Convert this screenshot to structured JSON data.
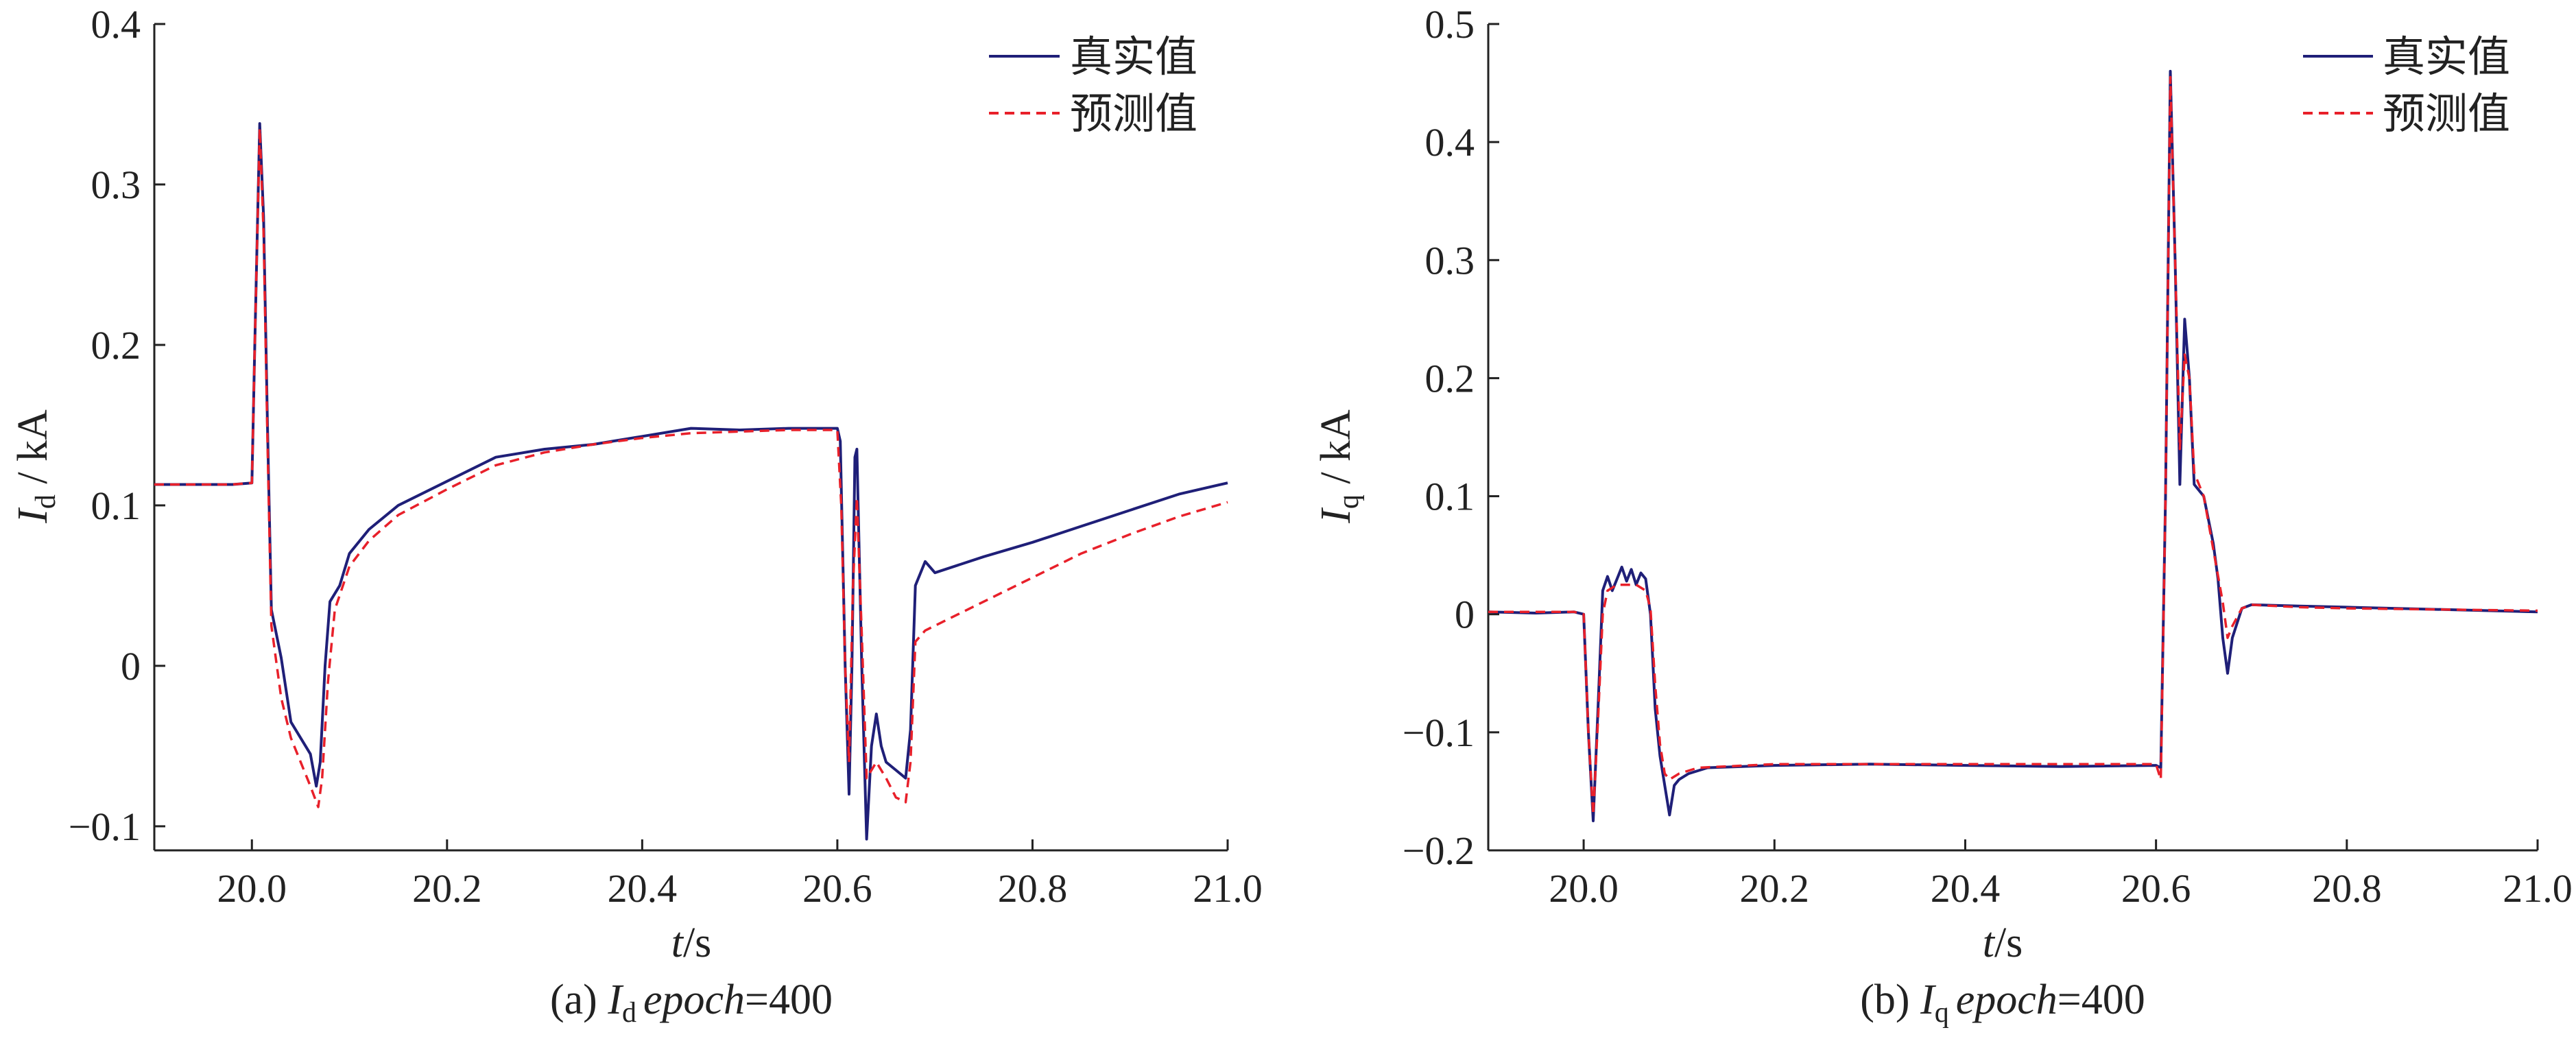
{
  "colors": {
    "true_series": "#1f1f78",
    "pred_series": "#e8202a",
    "axis": "#222222",
    "background": "#ffffff"
  },
  "chart_data": [
    {
      "type": "line",
      "caption": {
        "label": "(a) ",
        "var": "I",
        "sub": "d",
        "epoch_word": "epoch",
        "epoch_value": "=400"
      },
      "ylabel": {
        "var": "I",
        "sub": "d",
        "unit": " / kA"
      },
      "xlabel": {
        "var": "t",
        "unit": "/s"
      },
      "xlim": [
        19.9,
        21.0
      ],
      "ylim": [
        -0.115,
        0.4
      ],
      "xticks": [
        20.0,
        20.2,
        20.4,
        20.6,
        20.8,
        21.0
      ],
      "xtick_labels": [
        "20.0",
        "20.2",
        "20.4",
        "20.6",
        "20.8",
        "21.0"
      ],
      "yticks": [
        -0.1,
        0,
        0.1,
        0.2,
        0.3,
        0.4
      ],
      "ytick_labels": [
        "−0.1",
        "0",
        "0.1",
        "0.2",
        "0.3",
        "0.4"
      ],
      "grid": false,
      "legend": "top-right",
      "series": [
        {
          "name": "真实值",
          "style": "solid",
          "points": [
            [
              19.9,
              0.113
            ],
            [
              19.94,
              0.113
            ],
            [
              19.98,
              0.113
            ],
            [
              20.0,
              0.114
            ],
            [
              20.003,
              0.2
            ],
            [
              20.008,
              0.338
            ],
            [
              20.012,
              0.28
            ],
            [
              20.016,
              0.15
            ],
            [
              20.02,
              0.035
            ],
            [
              20.03,
              0.005
            ],
            [
              20.04,
              -0.035
            ],
            [
              20.05,
              -0.045
            ],
            [
              20.06,
              -0.055
            ],
            [
              20.066,
              -0.075
            ],
            [
              20.07,
              -0.06
            ],
            [
              20.075,
              0.0
            ],
            [
              20.08,
              0.04
            ],
            [
              20.09,
              0.05
            ],
            [
              20.1,
              0.07
            ],
            [
              20.12,
              0.085
            ],
            [
              20.15,
              0.1
            ],
            [
              20.2,
              0.115
            ],
            [
              20.25,
              0.13
            ],
            [
              20.3,
              0.135
            ],
            [
              20.35,
              0.138
            ],
            [
              20.4,
              0.143
            ],
            [
              20.45,
              0.148
            ],
            [
              20.5,
              0.147
            ],
            [
              20.55,
              0.148
            ],
            [
              20.6,
              0.148
            ],
            [
              20.603,
              0.14
            ],
            [
              20.608,
              0.0
            ],
            [
              20.612,
              -0.08
            ],
            [
              20.615,
              0.0
            ],
            [
              20.618,
              0.13
            ],
            [
              20.62,
              0.135
            ],
            [
              20.625,
              0.0
            ],
            [
              20.63,
              -0.108
            ],
            [
              20.635,
              -0.05
            ],
            [
              20.64,
              -0.03
            ],
            [
              20.645,
              -0.05
            ],
            [
              20.65,
              -0.06
            ],
            [
              20.66,
              -0.065
            ],
            [
              20.67,
              -0.07
            ],
            [
              20.675,
              -0.04
            ],
            [
              20.68,
              0.05
            ],
            [
              20.69,
              0.065
            ],
            [
              20.7,
              0.058
            ],
            [
              20.75,
              0.068
            ],
            [
              20.8,
              0.077
            ],
            [
              20.85,
              0.087
            ],
            [
              20.9,
              0.097
            ],
            [
              20.95,
              0.107
            ],
            [
              21.0,
              0.114
            ]
          ]
        },
        {
          "name": "预测值",
          "style": "dashed",
          "points": [
            [
              19.9,
              0.113
            ],
            [
              19.94,
              0.113
            ],
            [
              19.98,
              0.113
            ],
            [
              20.0,
              0.114
            ],
            [
              20.003,
              0.2
            ],
            [
              20.008,
              0.335
            ],
            [
              20.012,
              0.27
            ],
            [
              20.016,
              0.14
            ],
            [
              20.02,
              0.025
            ],
            [
              20.03,
              -0.02
            ],
            [
              20.04,
              -0.045
            ],
            [
              20.05,
              -0.06
            ],
            [
              20.06,
              -0.075
            ],
            [
              20.068,
              -0.088
            ],
            [
              20.072,
              -0.07
            ],
            [
              20.078,
              -0.01
            ],
            [
              20.085,
              0.035
            ],
            [
              20.1,
              0.062
            ],
            [
              20.12,
              0.078
            ],
            [
              20.15,
              0.094
            ],
            [
              20.2,
              0.11
            ],
            [
              20.25,
              0.125
            ],
            [
              20.3,
              0.133
            ],
            [
              20.35,
              0.138
            ],
            [
              20.4,
              0.142
            ],
            [
              20.45,
              0.145
            ],
            [
              20.5,
              0.146
            ],
            [
              20.55,
              0.147
            ],
            [
              20.6,
              0.147
            ],
            [
              20.604,
              0.1
            ],
            [
              20.608,
              0.0
            ],
            [
              20.612,
              -0.06
            ],
            [
              20.616,
              0.05
            ],
            [
              20.62,
              0.105
            ],
            [
              20.625,
              0.02
            ],
            [
              20.63,
              -0.07
            ],
            [
              20.64,
              -0.06
            ],
            [
              20.65,
              -0.07
            ],
            [
              20.66,
              -0.082
            ],
            [
              20.67,
              -0.085
            ],
            [
              20.675,
              -0.06
            ],
            [
              20.68,
              0.015
            ],
            [
              20.69,
              0.022
            ],
            [
              20.7,
              0.025
            ],
            [
              20.75,
              0.04
            ],
            [
              20.8,
              0.055
            ],
            [
              20.85,
              0.07
            ],
            [
              20.9,
              0.082
            ],
            [
              20.95,
              0.093
            ],
            [
              21.0,
              0.102
            ]
          ]
        }
      ]
    },
    {
      "type": "line",
      "caption": {
        "label": "(b) ",
        "var": "I",
        "sub": "q",
        "epoch_word": "epoch",
        "epoch_value": "=400"
      },
      "ylabel": {
        "var": "I",
        "sub": "q",
        "unit": " / kA"
      },
      "xlabel": {
        "var": "t",
        "unit": "/s"
      },
      "xlim": [
        19.9,
        21.0
      ],
      "ylim": [
        -0.2,
        0.5
      ],
      "xticks": [
        20.0,
        20.2,
        20.4,
        20.6,
        20.8,
        21.0
      ],
      "xtick_labels": [
        "20.0",
        "20.2",
        "20.4",
        "20.6",
        "20.8",
        "21.0"
      ],
      "yticks": [
        -0.2,
        -0.1,
        0,
        0.1,
        0.2,
        0.3,
        0.4,
        0.5
      ],
      "ytick_labels": [
        "−0.2",
        "−0.1",
        "0",
        "0.1",
        "0.2",
        "0.3",
        "0.4",
        "0.5"
      ],
      "grid": false,
      "legend": "top-right",
      "series": [
        {
          "name": "真实值",
          "style": "solid",
          "points": [
            [
              19.9,
              0.002
            ],
            [
              19.95,
              0.001
            ],
            [
              19.99,
              0.002
            ],
            [
              20.0,
              0.0
            ],
            [
              20.005,
              -0.1
            ],
            [
              20.01,
              -0.175
            ],
            [
              20.015,
              -0.08
            ],
            [
              20.02,
              0.02
            ],
            [
              20.025,
              0.032
            ],
            [
              20.03,
              0.02
            ],
            [
              20.035,
              0.03
            ],
            [
              20.04,
              0.04
            ],
            [
              20.045,
              0.028
            ],
            [
              20.05,
              0.038
            ],
            [
              20.055,
              0.025
            ],
            [
              20.06,
              0.035
            ],
            [
              20.065,
              0.03
            ],
            [
              20.07,
              0.0
            ],
            [
              20.075,
              -0.08
            ],
            [
              20.08,
              -0.12
            ],
            [
              20.085,
              -0.145
            ],
            [
              20.09,
              -0.17
            ],
            [
              20.095,
              -0.145
            ],
            [
              20.1,
              -0.14
            ],
            [
              20.11,
              -0.135
            ],
            [
              20.13,
              -0.13
            ],
            [
              20.2,
              -0.128
            ],
            [
              20.3,
              -0.127
            ],
            [
              20.4,
              -0.128
            ],
            [
              20.5,
              -0.129
            ],
            [
              20.6,
              -0.128
            ],
            [
              20.605,
              -0.13
            ],
            [
              20.61,
              0.1
            ],
            [
              20.615,
              0.46
            ],
            [
              20.62,
              0.3
            ],
            [
              20.625,
              0.11
            ],
            [
              20.63,
              0.25
            ],
            [
              20.635,
              0.2
            ],
            [
              20.64,
              0.11
            ],
            [
              20.65,
              0.1
            ],
            [
              20.66,
              0.06
            ],
            [
              20.665,
              0.03
            ],
            [
              20.67,
              -0.02
            ],
            [
              20.675,
              -0.05
            ],
            [
              20.68,
              -0.02
            ],
            [
              20.69,
              0.005
            ],
            [
              20.7,
              0.008
            ],
            [
              20.75,
              0.007
            ],
            [
              20.8,
              0.006
            ],
            [
              20.9,
              0.004
            ],
            [
              21.0,
              0.002
            ]
          ]
        },
        {
          "name": "预测值",
          "style": "dashed",
          "points": [
            [
              19.9,
              0.002
            ],
            [
              19.95,
              0.002
            ],
            [
              19.99,
              0.002
            ],
            [
              20.0,
              0.0
            ],
            [
              20.005,
              -0.1
            ],
            [
              20.01,
              -0.17
            ],
            [
              20.015,
              -0.09
            ],
            [
              20.02,
              0.0
            ],
            [
              20.025,
              0.02
            ],
            [
              20.035,
              0.025
            ],
            [
              20.045,
              0.025
            ],
            [
              20.055,
              0.025
            ],
            [
              20.065,
              0.02
            ],
            [
              20.07,
              0.005
            ],
            [
              20.075,
              -0.06
            ],
            [
              20.08,
              -0.11
            ],
            [
              20.085,
              -0.135
            ],
            [
              20.09,
              -0.14
            ],
            [
              20.1,
              -0.135
            ],
            [
              20.12,
              -0.13
            ],
            [
              20.2,
              -0.127
            ],
            [
              20.3,
              -0.127
            ],
            [
              20.4,
              -0.127
            ],
            [
              20.5,
              -0.127
            ],
            [
              20.6,
              -0.127
            ],
            [
              20.605,
              -0.14
            ],
            [
              20.61,
              0.1
            ],
            [
              20.615,
              0.455
            ],
            [
              20.62,
              0.3
            ],
            [
              20.625,
              0.14
            ],
            [
              20.63,
              0.22
            ],
            [
              20.635,
              0.2
            ],
            [
              20.64,
              0.12
            ],
            [
              20.65,
              0.1
            ],
            [
              20.66,
              0.055
            ],
            [
              20.67,
              0.01
            ],
            [
              20.675,
              -0.02
            ],
            [
              20.68,
              -0.01
            ],
            [
              20.69,
              0.005
            ],
            [
              20.7,
              0.008
            ],
            [
              20.75,
              0.006
            ],
            [
              20.8,
              0.005
            ],
            [
              20.9,
              0.004
            ],
            [
              21.0,
              0.003
            ]
          ]
        }
      ]
    }
  ]
}
